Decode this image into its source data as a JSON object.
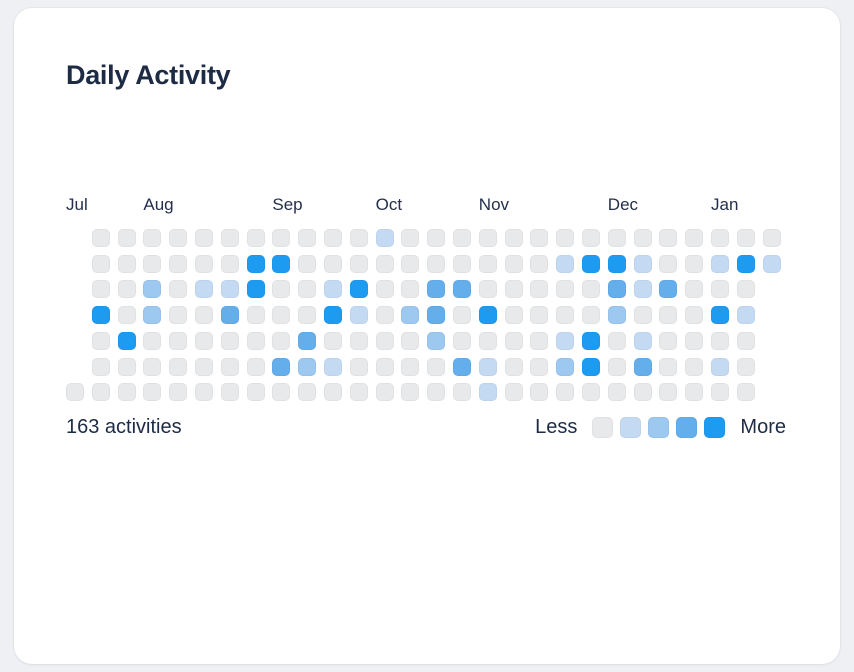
{
  "page": {
    "background_color": "#eef0f3",
    "card_background_color": "#ffffff",
    "text_color": "#1d2b45"
  },
  "card": {
    "title": "Daily Activity"
  },
  "footer": {
    "total": "163 activities",
    "legend_less": "Less",
    "legend_more": "More"
  },
  "chart_data": {
    "type": "heatmap",
    "title": "Daily Activity",
    "layout": "calendar heatmap, columns are weeks (28), rows are days of week (7); '.' means no cell that day",
    "weeks": 28,
    "days_per_week": 7,
    "total_activities": 163,
    "months": [
      {
        "label": "Jul",
        "week": 0
      },
      {
        "label": "Aug",
        "week": 3
      },
      {
        "label": "Sep",
        "week": 8
      },
      {
        "label": "Oct",
        "week": 12
      },
      {
        "label": "Nov",
        "week": 16
      },
      {
        "label": "Dec",
        "week": 21
      },
      {
        "label": "Jan",
        "week": 25
      }
    ],
    "level_colors": [
      "#e8e9ea",
      "#c4daf2",
      "#9dc8f0",
      "#64aeec",
      "#1d9bf0"
    ],
    "legend_levels": [
      0,
      1,
      2,
      3,
      4
    ],
    "cells": [
      ".000000000001000000000000000",
      ".000000440000000000144100141",
      ".00201140014003300000313000.",
      ".40200300041023040000200041.",
      ".04000000300002000014010000.",
      ".00000003210000310024030010.",
      "000000000000000010000000000."
    ]
  }
}
